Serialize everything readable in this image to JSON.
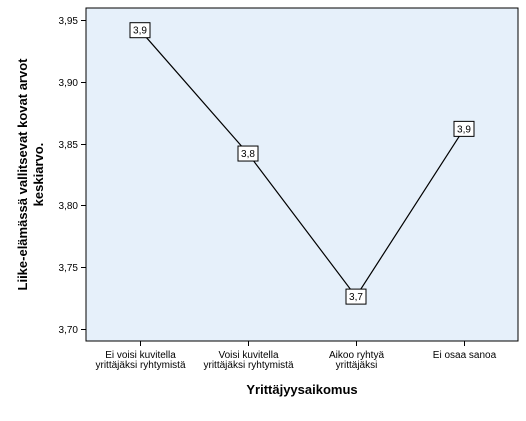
{
  "chart_data": {
    "type": "line",
    "categories": [
      [
        "Ei voisi kuvitella",
        "yrittäjäksi ryhtymistä"
      ],
      [
        "Voisi kuvitella",
        "yrittäjäksi ryhtymistä"
      ],
      [
        "Aikoo ryhtyä",
        "yrittäjäksi"
      ],
      [
        "Ei osaa sanoa"
      ]
    ],
    "values": [
      3.942,
      3.842,
      3.726,
      3.862
    ],
    "data_labels": [
      "3,9",
      "3,8",
      "3,7",
      "3,9"
    ],
    "xlabel": "Yrittäjyysaikomus",
    "ylabel": [
      "Liike-elämässä vallitsevat kovat arvot",
      "keskiarvo."
    ],
    "ylim": [
      3.69,
      3.96
    ],
    "yticks": [
      3.7,
      3.75,
      3.8,
      3.85,
      3.9,
      3.95
    ],
    "ytick_labels": [
      "3,70",
      "3,75",
      "3,80",
      "3,85",
      "3,90",
      "3,95"
    ],
    "grid": false,
    "colors": {
      "plot_background": "#e6f0fa",
      "line": "#000000",
      "frame": "#000000"
    }
  }
}
